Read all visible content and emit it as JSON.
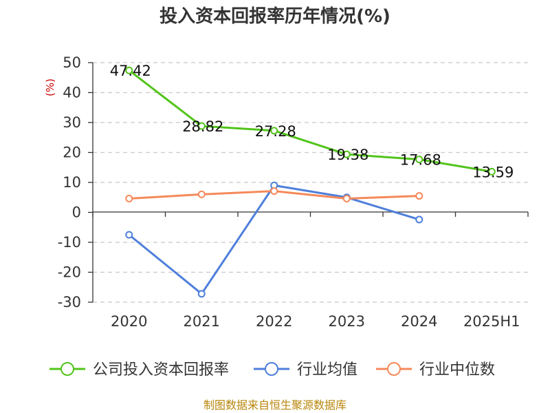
{
  "chart_data": {
    "type": "line",
    "title": "投入资本回报率历年情况(%)",
    "ylabel": "(%)",
    "xlabel": "",
    "categories": [
      "2020",
      "2021",
      "2022",
      "2023",
      "2024",
      "2025H1"
    ],
    "ylim": [
      -30,
      50
    ],
    "yticks": [
      50,
      40,
      30,
      20,
      10,
      0,
      -10,
      -20,
      -30
    ],
    "grid": true,
    "legend_position": "bottom",
    "series": [
      {
        "name": "公司投入资本回报率",
        "color": "#52c41a",
        "values": [
          47.42,
          28.82,
          27.28,
          19.38,
          17.68,
          13.59
        ],
        "labels": [
          "47.42",
          "28.82",
          "27.28",
          "19.38",
          "17.68",
          "13.59"
        ]
      },
      {
        "name": "行业均值",
        "color": "#4e7fdb",
        "values": [
          -7.5,
          -27.2,
          9.0,
          5.0,
          -2.4,
          null
        ]
      },
      {
        "name": "行业中位数",
        "color": "#f5895a",
        "values": [
          4.6,
          6.0,
          7.1,
          4.6,
          5.5,
          null
        ]
      }
    ],
    "source": "制图数据来自恒生聚源数据库"
  }
}
